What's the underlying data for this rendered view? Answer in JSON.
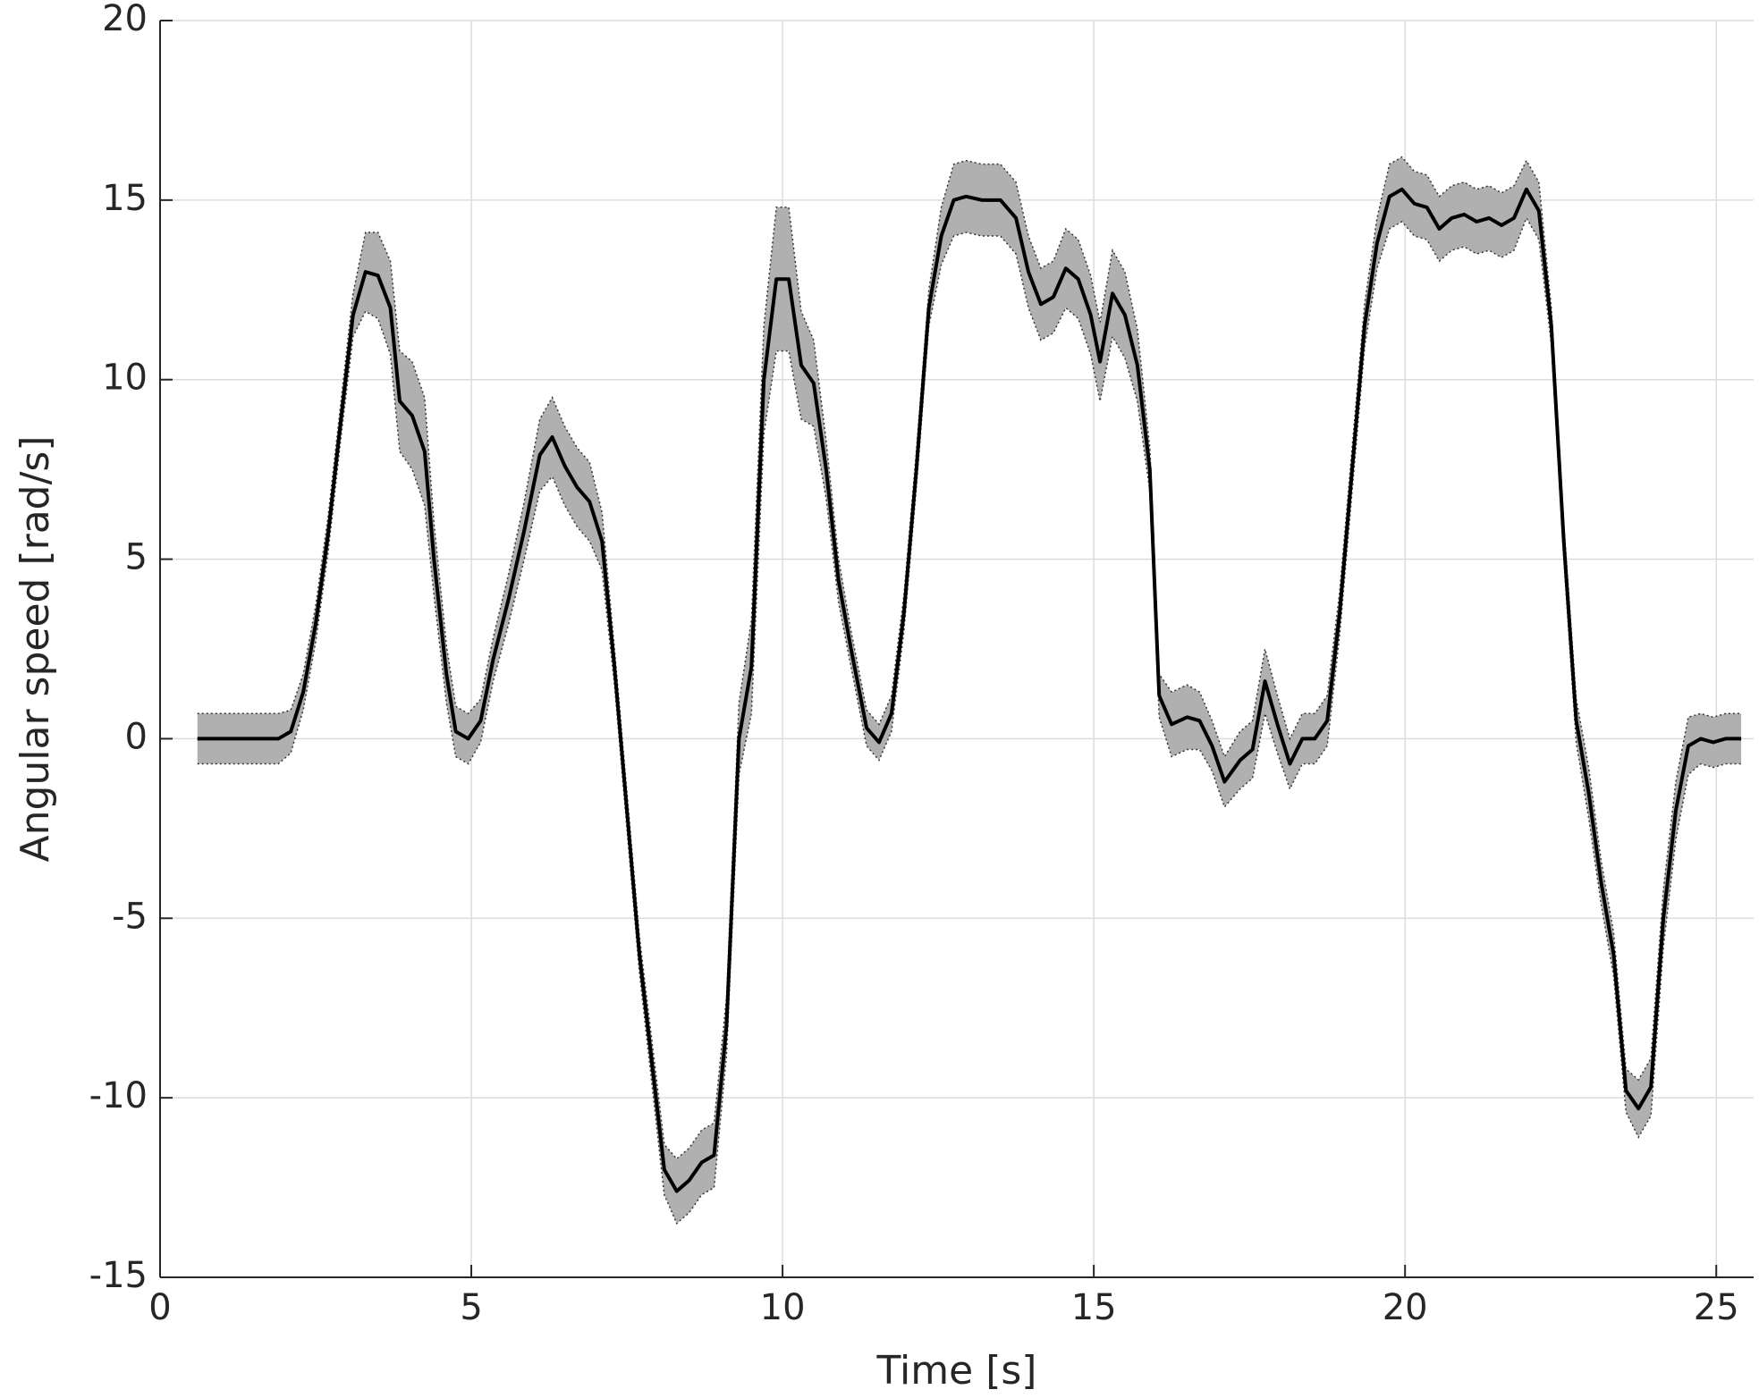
{
  "chart_data": {
    "type": "line",
    "x_label": "Time [s]",
    "y_label": "Angular speed [rad/s]",
    "xlim": [
      0,
      25.6
    ],
    "ylim": [
      -15,
      20
    ],
    "xticks": [
      0,
      5,
      10,
      15,
      20,
      25
    ],
    "yticks": [
      -15,
      -10,
      -5,
      0,
      5,
      10,
      15,
      20
    ],
    "grid": true,
    "color": "#000000",
    "band_color": "#b0b0b0",
    "x": [
      0.6,
      1.0,
      1.5,
      1.9,
      2.1,
      2.3,
      2.5,
      2.7,
      2.9,
      3.1,
      3.3,
      3.5,
      3.7,
      3.85,
      4.05,
      4.25,
      4.4,
      4.6,
      4.75,
      4.95,
      5.15,
      5.35,
      5.6,
      5.85,
      6.1,
      6.3,
      6.5,
      6.7,
      6.9,
      7.1,
      7.3,
      7.5,
      7.7,
      7.9,
      8.1,
      8.3,
      8.5,
      8.7,
      8.9,
      9.1,
      9.3,
      9.5,
      9.7,
      9.9,
      10.1,
      10.3,
      10.5,
      10.7,
      10.9,
      11.1,
      11.35,
      11.55,
      11.75,
      11.95,
      12.15,
      12.35,
      12.55,
      12.75,
      12.95,
      13.2,
      13.5,
      13.75,
      13.95,
      14.15,
      14.35,
      14.55,
      14.75,
      14.95,
      15.1,
      15.3,
      15.5,
      15.7,
      15.9,
      16.05,
      16.25,
      16.5,
      16.7,
      16.9,
      17.1,
      17.35,
      17.55,
      17.75,
      17.95,
      18.15,
      18.35,
      18.55,
      18.75,
      18.95,
      19.15,
      19.35,
      19.55,
      19.75,
      19.95,
      20.15,
      20.35,
      20.55,
      20.75,
      20.95,
      21.15,
      21.35,
      21.55,
      21.75,
      21.95,
      22.15,
      22.35,
      22.55,
      22.75,
      22.95,
      23.15,
      23.35,
      23.55,
      23.75,
      23.95,
      24.15,
      24.35,
      24.55,
      24.75,
      24.95,
      25.15,
      25.4
    ],
    "values": [
      0,
      0,
      0,
      0,
      0.2,
      1.3,
      3.2,
      5.7,
      8.8,
      11.8,
      13.0,
      12.9,
      12.0,
      9.4,
      9.0,
      8.0,
      5.0,
      1.8,
      0.2,
      0.0,
      0.5,
      2.2,
      3.9,
      5.8,
      7.9,
      8.4,
      7.6,
      7.0,
      6.6,
      5.5,
      2.0,
      -2.0,
      -6.0,
      -9.0,
      -12.0,
      -12.6,
      -12.3,
      -11.8,
      -11.6,
      -8.0,
      0.0,
      2.0,
      10.0,
      12.8,
      12.8,
      10.4,
      9.9,
      7.5,
      4.4,
      2.5,
      0.3,
      -0.1,
      0.7,
      3.5,
      7.5,
      12.0,
      14.0,
      15.0,
      15.1,
      15.0,
      15.0,
      14.5,
      13.0,
      12.1,
      12.3,
      13.1,
      12.8,
      11.8,
      10.5,
      12.4,
      11.8,
      10.4,
      7.5,
      1.2,
      0.4,
      0.6,
      0.5,
      -0.2,
      -1.2,
      -0.6,
      -0.3,
      1.6,
      0.4,
      -0.7,
      0.0,
      0.0,
      0.5,
      3.5,
      7.5,
      11.5,
      13.8,
      15.1,
      15.3,
      14.9,
      14.8,
      14.2,
      14.5,
      14.6,
      14.4,
      14.5,
      14.3,
      14.5,
      15.3,
      14.7,
      11.5,
      5.5,
      0.5,
      -1.5,
      -4.0,
      -6.0,
      -9.8,
      -10.3,
      -9.7,
      -5.0,
      -2.0,
      -0.2,
      0.0,
      -0.1,
      0.0,
      0.0
    ],
    "upper": [
      0.7,
      0.7,
      0.7,
      0.7,
      0.8,
      1.8,
      3.7,
      6.2,
      9.3,
      12.4,
      14.1,
      14.1,
      13.3,
      10.8,
      10.5,
      9.5,
      6.0,
      2.6,
      0.9,
      0.7,
      1.1,
      2.8,
      4.6,
      6.6,
      8.9,
      9.5,
      8.7,
      8.1,
      7.7,
      6.3,
      2.5,
      -1.5,
      -5.5,
      -8.4,
      -11.3,
      -11.7,
      -11.4,
      -10.9,
      -10.7,
      -7.2,
      1.0,
      3.3,
      11.5,
      14.8,
      14.8,
      11.9,
      11.1,
      8.3,
      5.0,
      3.0,
      0.8,
      0.4,
      1.2,
      4.0,
      8.0,
      12.5,
      14.8,
      16.0,
      16.1,
      16.0,
      16.0,
      15.5,
      14.0,
      13.1,
      13.3,
      14.2,
      13.9,
      12.9,
      11.6,
      13.6,
      13.0,
      11.4,
      8.1,
      1.8,
      1.3,
      1.5,
      1.3,
      0.5,
      -0.5,
      0.2,
      0.5,
      2.5,
      1.2,
      0.0,
      0.7,
      0.7,
      1.2,
      4.1,
      8.1,
      12.1,
      14.5,
      16.0,
      16.2,
      15.8,
      15.7,
      15.1,
      15.4,
      15.5,
      15.3,
      15.4,
      15.2,
      15.4,
      16.1,
      15.5,
      12.0,
      6.0,
      1.1,
      -0.8,
      -3.4,
      -5.4,
      -9.2,
      -9.5,
      -8.9,
      -4.2,
      -1.2,
      0.6,
      0.7,
      0.6,
      0.7,
      0.7
    ],
    "lower": [
      -0.7,
      -0.7,
      -0.7,
      -0.7,
      -0.4,
      0.8,
      2.7,
      5.2,
      8.3,
      11.2,
      11.9,
      11.7,
      10.7,
      8.0,
      7.5,
      6.5,
      4.0,
      1.0,
      -0.5,
      -0.7,
      -0.1,
      1.6,
      3.2,
      5.0,
      6.9,
      7.3,
      6.5,
      5.9,
      5.5,
      4.7,
      1.5,
      -2.5,
      -6.5,
      -9.6,
      -12.7,
      -13.5,
      -13.2,
      -12.7,
      -12.5,
      -8.8,
      -1.0,
      0.7,
      8.5,
      10.8,
      10.8,
      8.9,
      8.7,
      6.7,
      3.8,
      2.0,
      -0.2,
      -0.6,
      0.2,
      3.0,
      7.0,
      11.5,
      13.2,
      14.0,
      14.1,
      14.0,
      14.0,
      13.5,
      12.0,
      11.1,
      11.3,
      12.0,
      11.7,
      10.7,
      9.4,
      11.2,
      10.6,
      9.4,
      6.9,
      0.6,
      -0.5,
      -0.3,
      -0.3,
      -0.9,
      -1.9,
      -1.4,
      -1.1,
      0.7,
      -0.4,
      -1.4,
      -0.7,
      -0.7,
      -0.2,
      2.9,
      6.9,
      10.9,
      13.1,
      14.2,
      14.4,
      14.0,
      13.9,
      13.3,
      13.6,
      13.7,
      13.5,
      13.6,
      13.4,
      13.6,
      14.5,
      13.9,
      11.0,
      5.0,
      -0.1,
      -2.2,
      -4.6,
      -6.6,
      -10.4,
      -11.1,
      -10.5,
      -5.8,
      -2.8,
      -1.0,
      -0.7,
      -0.8,
      -0.7,
      -0.7
    ]
  }
}
